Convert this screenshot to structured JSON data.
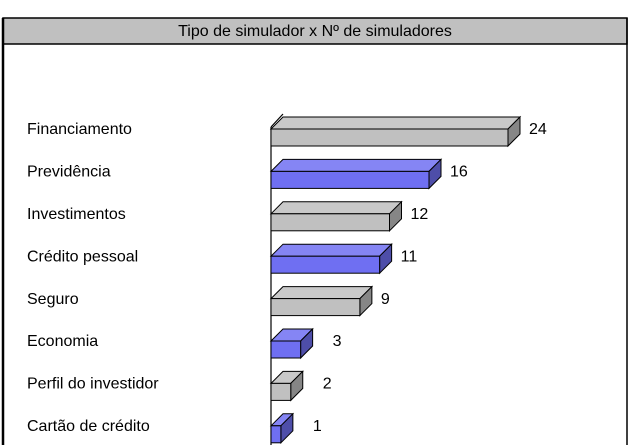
{
  "chart_data": {
    "type": "bar3d-horizontal",
    "title": "Tipo de simulador x Nº de simuladores",
    "categories": [
      "Financiamento",
      "Previdência",
      "Investimentos",
      "Crédito pessoal",
      "Seguro",
      "Economia",
      "Perfil do investidor",
      "Cartão de crédito"
    ],
    "values": [
      24,
      16,
      12,
      11,
      9,
      3,
      2,
      1
    ],
    "colors": [
      "#c0c0c0",
      "#6f6ff2",
      "#c0c0c0",
      "#6f6ff2",
      "#c0c0c0",
      "#6f6ff2",
      "#c0c0c0",
      "#6f6ff2"
    ]
  }
}
